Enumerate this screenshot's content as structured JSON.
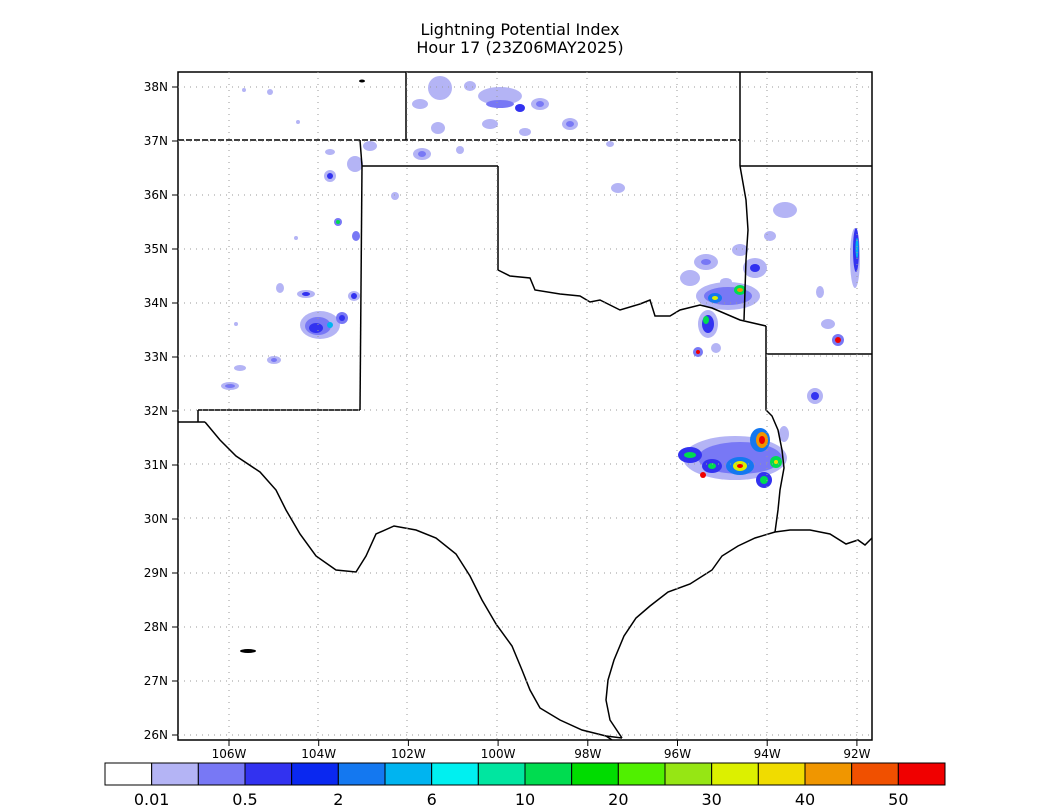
{
  "title": "Lightning Potential Index",
  "subtitle": "Hour 17 (23Z06MAY2025)",
  "lat_labels": [
    "38N",
    "37N",
    "36N",
    "35N",
    "34N",
    "33N",
    "32N",
    "31N",
    "30N",
    "29N",
    "28N",
    "27N",
    "26N"
  ],
  "lon_labels": [
    "106W",
    "104W",
    "102W",
    "100W",
    "98W",
    "96W",
    "94W",
    "92W"
  ],
  "colorbar": {
    "colors": [
      "#ffffff",
      "#b4b4f5",
      "#7878f5",
      "#3232f0",
      "#0a28f0",
      "#1478f0",
      "#00b4f0",
      "#00f0f0",
      "#00e6a0",
      "#00dc50",
      "#00dc00",
      "#50f000",
      "#96e614",
      "#dcf000",
      "#f0dc00",
      "#f09600",
      "#f05000",
      "#f00000"
    ],
    "labels": [
      "0.01",
      "0.5",
      "2",
      "6",
      "10",
      "20",
      "30",
      "40",
      "50"
    ]
  },
  "legend_colors": {
    "low": "#b4b4f5",
    "mid": "#3232f0",
    "high": "#00dc50",
    "peak": "#f00000"
  }
}
